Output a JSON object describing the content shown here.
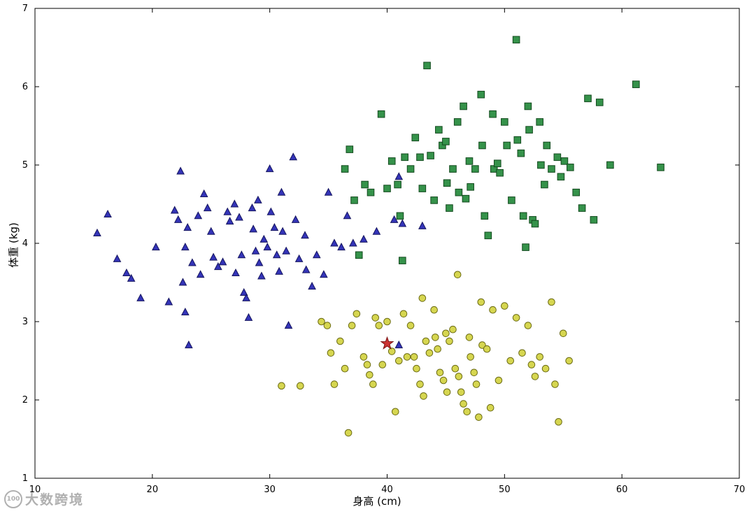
{
  "watermark": {
    "logo": "100",
    "text": "大数跨境"
  },
  "chart_data": {
    "type": "scatter",
    "title": "",
    "xlabel": "身高 (cm)",
    "ylabel": "体重 (kg)",
    "xlim": [
      10,
      70
    ],
    "ylim": [
      1,
      7
    ],
    "xticks": [
      10,
      20,
      30,
      40,
      50,
      60,
      70
    ],
    "yticks": [
      1,
      2,
      3,
      4,
      5,
      6,
      7
    ],
    "grid": false,
    "legend": "none",
    "series": [
      {
        "name": "cluster-blue-triangles",
        "marker": "triangle",
        "color": "#3434b8",
        "edge": "#15155e",
        "points": [
          [
            15.3,
            4.13
          ],
          [
            16.2,
            4.37
          ],
          [
            17.0,
            3.8
          ],
          [
            17.8,
            3.62
          ],
          [
            18.2,
            3.55
          ],
          [
            19.0,
            3.3
          ],
          [
            20.3,
            3.95
          ],
          [
            21.4,
            3.25
          ],
          [
            21.9,
            4.42
          ],
          [
            22.2,
            4.3
          ],
          [
            22.4,
            4.92
          ],
          [
            22.6,
            3.5
          ],
          [
            22.8,
            3.95
          ],
          [
            22.8,
            3.12
          ],
          [
            23.0,
            4.2
          ],
          [
            23.1,
            2.7
          ],
          [
            23.4,
            3.75
          ],
          [
            23.9,
            4.35
          ],
          [
            24.1,
            3.6
          ],
          [
            24.4,
            4.63
          ],
          [
            24.7,
            4.45
          ],
          [
            25.0,
            4.15
          ],
          [
            25.2,
            3.82
          ],
          [
            25.6,
            3.7
          ],
          [
            26.0,
            3.76
          ],
          [
            26.4,
            4.4
          ],
          [
            26.6,
            4.28
          ],
          [
            27.0,
            4.5
          ],
          [
            27.1,
            3.62
          ],
          [
            27.4,
            4.33
          ],
          [
            27.6,
            3.85
          ],
          [
            27.8,
            3.37
          ],
          [
            28.0,
            3.3
          ],
          [
            28.2,
            3.05
          ],
          [
            28.5,
            4.45
          ],
          [
            28.6,
            4.18
          ],
          [
            28.8,
            3.9
          ],
          [
            29.0,
            4.55
          ],
          [
            29.1,
            3.75
          ],
          [
            29.3,
            3.58
          ],
          [
            29.5,
            4.05
          ],
          [
            29.8,
            3.95
          ],
          [
            30.0,
            4.95
          ],
          [
            30.1,
            4.4
          ],
          [
            30.4,
            4.2
          ],
          [
            30.6,
            3.85
          ],
          [
            30.8,
            3.64
          ],
          [
            31.0,
            4.65
          ],
          [
            31.1,
            4.15
          ],
          [
            31.4,
            3.9
          ],
          [
            31.6,
            2.95
          ],
          [
            32.0,
            5.1
          ],
          [
            32.2,
            4.3
          ],
          [
            32.5,
            3.8
          ],
          [
            33.0,
            4.1
          ],
          [
            33.1,
            3.66
          ],
          [
            33.6,
            3.45
          ],
          [
            34.0,
            3.85
          ],
          [
            34.6,
            3.6
          ],
          [
            35.0,
            4.65
          ],
          [
            35.5,
            4.0
          ],
          [
            36.1,
            3.95
          ],
          [
            36.6,
            4.35
          ],
          [
            37.1,
            4.0
          ],
          [
            38.0,
            4.05
          ],
          [
            39.1,
            4.15
          ],
          [
            40.6,
            4.3
          ],
          [
            41.0,
            4.85
          ],
          [
            41.3,
            4.25
          ],
          [
            41.0,
            2.7
          ],
          [
            43.0,
            4.22
          ]
        ]
      },
      {
        "name": "cluster-green-squares",
        "marker": "square",
        "color": "#35924a",
        "edge": "#134a1e",
        "points": [
          [
            36.4,
            4.95
          ],
          [
            36.8,
            5.2
          ],
          [
            37.2,
            4.55
          ],
          [
            37.6,
            3.85
          ],
          [
            38.1,
            4.75
          ],
          [
            38.6,
            4.65
          ],
          [
            39.5,
            5.65
          ],
          [
            40.0,
            4.7
          ],
          [
            40.4,
            5.05
          ],
          [
            40.9,
            4.75
          ],
          [
            41.1,
            4.35
          ],
          [
            41.5,
            5.1
          ],
          [
            41.3,
            3.78
          ],
          [
            42.0,
            4.95
          ],
          [
            42.4,
            5.35
          ],
          [
            42.8,
            5.1
          ],
          [
            43.0,
            4.7
          ],
          [
            43.4,
            6.27
          ],
          [
            43.7,
            5.12
          ],
          [
            44.0,
            4.55
          ],
          [
            44.4,
            5.45
          ],
          [
            44.7,
            5.25
          ],
          [
            45.0,
            5.3
          ],
          [
            45.1,
            4.77
          ],
          [
            45.3,
            4.45
          ],
          [
            45.6,
            4.95
          ],
          [
            46.0,
            5.55
          ],
          [
            46.1,
            4.65
          ],
          [
            46.5,
            5.75
          ],
          [
            46.7,
            4.57
          ],
          [
            47.0,
            5.05
          ],
          [
            47.1,
            4.72
          ],
          [
            47.5,
            4.95
          ],
          [
            48.0,
            5.9
          ],
          [
            48.1,
            5.25
          ],
          [
            48.3,
            4.35
          ],
          [
            48.6,
            4.1
          ],
          [
            49.0,
            5.65
          ],
          [
            49.1,
            4.95
          ],
          [
            49.4,
            5.02
          ],
          [
            49.6,
            4.9
          ],
          [
            50.0,
            5.55
          ],
          [
            50.2,
            5.25
          ],
          [
            50.6,
            4.55
          ],
          [
            51.0,
            6.6
          ],
          [
            51.1,
            5.32
          ],
          [
            51.4,
            5.15
          ],
          [
            51.6,
            4.35
          ],
          [
            51.8,
            3.95
          ],
          [
            52.0,
            5.75
          ],
          [
            52.1,
            5.45
          ],
          [
            52.4,
            4.3
          ],
          [
            52.6,
            4.25
          ],
          [
            53.0,
            5.55
          ],
          [
            53.1,
            5.0
          ],
          [
            53.4,
            4.75
          ],
          [
            53.6,
            5.25
          ],
          [
            54.0,
            4.95
          ],
          [
            54.5,
            5.1
          ],
          [
            54.8,
            4.85
          ],
          [
            55.1,
            5.05
          ],
          [
            55.6,
            4.97
          ],
          [
            56.1,
            4.65
          ],
          [
            56.6,
            4.45
          ],
          [
            57.1,
            5.85
          ],
          [
            57.6,
            4.3
          ],
          [
            58.1,
            5.8
          ],
          [
            59.0,
            5.0
          ],
          [
            61.2,
            6.03
          ],
          [
            63.3,
            4.97
          ]
        ]
      },
      {
        "name": "cluster-yellow-circles",
        "marker": "circle",
        "color": "#d6d650",
        "edge": "#6b6b14",
        "points": [
          [
            31.0,
            2.18
          ],
          [
            32.6,
            2.18
          ],
          [
            34.4,
            3.0
          ],
          [
            34.9,
            2.95
          ],
          [
            35.2,
            2.6
          ],
          [
            35.5,
            2.2
          ],
          [
            36.0,
            2.75
          ],
          [
            36.4,
            2.4
          ],
          [
            36.7,
            1.58
          ],
          [
            37.0,
            2.95
          ],
          [
            37.4,
            3.1
          ],
          [
            38.0,
            2.55
          ],
          [
            38.3,
            2.45
          ],
          [
            38.5,
            2.32
          ],
          [
            38.8,
            2.2
          ],
          [
            39.0,
            3.05
          ],
          [
            39.3,
            2.95
          ],
          [
            39.6,
            2.45
          ],
          [
            40.0,
            3.0
          ],
          [
            40.4,
            2.62
          ],
          [
            40.7,
            1.85
          ],
          [
            41.0,
            2.5
          ],
          [
            41.4,
            3.1
          ],
          [
            41.7,
            2.55
          ],
          [
            42.0,
            2.95
          ],
          [
            42.3,
            2.55
          ],
          [
            42.5,
            2.4
          ],
          [
            42.8,
            2.2
          ],
          [
            43.0,
            3.3
          ],
          [
            43.1,
            2.05
          ],
          [
            43.3,
            2.75
          ],
          [
            43.6,
            2.6
          ],
          [
            44.0,
            3.15
          ],
          [
            44.1,
            2.8
          ],
          [
            44.3,
            2.65
          ],
          [
            44.5,
            2.35
          ],
          [
            44.8,
            2.25
          ],
          [
            45.0,
            2.85
          ],
          [
            45.1,
            2.1
          ],
          [
            45.3,
            2.75
          ],
          [
            45.6,
            2.9
          ],
          [
            45.8,
            2.4
          ],
          [
            46.0,
            3.6
          ],
          [
            46.1,
            2.3
          ],
          [
            46.3,
            2.1
          ],
          [
            46.5,
            1.95
          ],
          [
            46.8,
            1.85
          ],
          [
            47.0,
            2.8
          ],
          [
            47.1,
            2.55
          ],
          [
            47.4,
            2.35
          ],
          [
            47.6,
            2.2
          ],
          [
            47.8,
            1.78
          ],
          [
            48.0,
            3.25
          ],
          [
            48.1,
            2.7
          ],
          [
            48.5,
            2.65
          ],
          [
            48.8,
            1.9
          ],
          [
            49.0,
            3.15
          ],
          [
            49.5,
            2.25
          ],
          [
            50.0,
            3.2
          ],
          [
            50.5,
            2.5
          ],
          [
            51.0,
            3.05
          ],
          [
            51.5,
            2.6
          ],
          [
            52.0,
            2.95
          ],
          [
            52.3,
            2.45
          ],
          [
            52.6,
            2.3
          ],
          [
            53.0,
            2.55
          ],
          [
            53.5,
            2.4
          ],
          [
            54.0,
            3.25
          ],
          [
            54.3,
            2.2
          ],
          [
            54.6,
            1.72
          ],
          [
            55.0,
            2.85
          ],
          [
            55.5,
            2.5
          ]
        ]
      },
      {
        "name": "query-red-star",
        "marker": "star",
        "color": "#cc3333",
        "edge": "#7a1010",
        "points": [
          [
            40.0,
            2.72
          ]
        ]
      }
    ]
  }
}
